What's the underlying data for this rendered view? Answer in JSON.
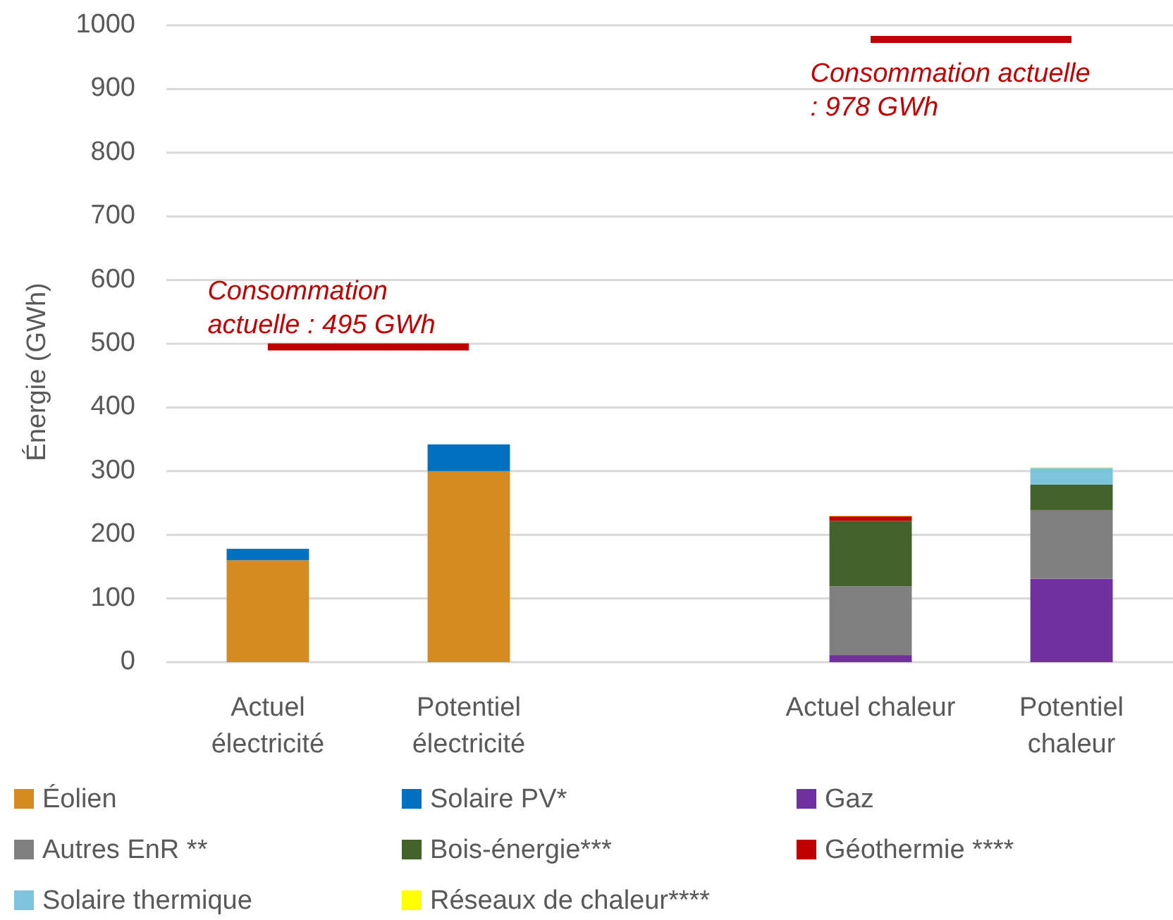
{
  "chart_data": {
    "type": "bar",
    "stacked": true,
    "ylabel": "Énergie (GWh)",
    "categories": [
      "Actuel électricité",
      "Potentiel électricité",
      null,
      "Actuel chaleur",
      "Potentiel chaleur"
    ],
    "ylim": [
      0,
      1000
    ],
    "yticks": [
      0,
      100,
      200,
      300,
      400,
      500,
      600,
      700,
      800,
      900,
      1000
    ],
    "grid": "y",
    "legend": "bottom",
    "series": [
      {
        "name": "Éolien",
        "color": "#d68b20",
        "values": [
          160,
          300,
          null,
          null,
          null
        ]
      },
      {
        "name": "Solaire PV*",
        "color": "#0070c0",
        "values": [
          18,
          42,
          null,
          null,
          null
        ]
      },
      {
        "name": "Gaz",
        "color": "#7030a0",
        "values": [
          null,
          null,
          null,
          11,
          131
        ]
      },
      {
        "name": "Autres EnR **",
        "color": "#808080",
        "values": [
          null,
          null,
          null,
          108,
          108
        ]
      },
      {
        "name": "Bois-énergie***",
        "color": "#43632a",
        "values": [
          null,
          null,
          null,
          103,
          40
        ]
      },
      {
        "name": "Géothermie ****",
        "color": "#c00000",
        "values": [
          null,
          null,
          null,
          7,
          null
        ]
      },
      {
        "name": "Solaire thermique",
        "color": "#7cc3dc",
        "values": [
          null,
          null,
          null,
          null,
          26
        ]
      },
      {
        "name": "Réseaux de chaleur****",
        "color": "#ffff00",
        "values": [
          null,
          null,
          null,
          1,
          1
        ]
      },
      {
        "type": "line",
        "color": "#c00000",
        "values": [
          495,
          495,
          null,
          null,
          null
        ]
      },
      {
        "type": "line",
        "color": "#c00000",
        "values": [
          null,
          null,
          null,
          978,
          978
        ]
      }
    ],
    "annotations": [
      {
        "text": "Consommation actuelle : 495 GWh",
        "x": "Actuel électricité",
        "y": 495
      },
      {
        "text": "Consommation actuelle : 978 GWh",
        "x": "Actuel chaleur",
        "y": 978
      }
    ]
  }
}
